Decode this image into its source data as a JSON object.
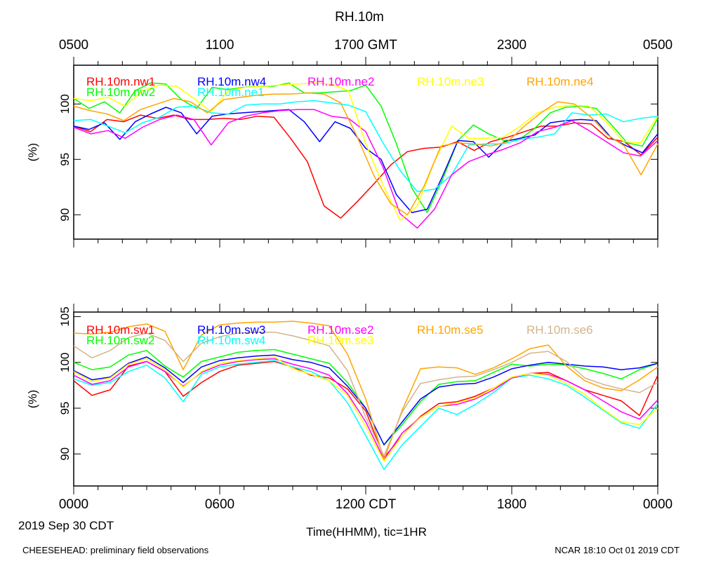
{
  "figure": {
    "title": "RH.10m",
    "top_axis_unit": "GMT",
    "x_axis_label": "Time(HHMM), tic=1HR",
    "date_label": "2019 Sep 30 CDT",
    "footer_left": "CHEESEHEAD: preliminary field observations",
    "footer_right": "NCAR 18:10 Oct 01 2019 CDT"
  },
  "chart_data": [
    {
      "type": "line",
      "title": "RH.10m",
      "ylabel": "(%)",
      "xlabel": "",
      "x_unit": "hour CDT",
      "xlim": [
        0,
        24
      ],
      "ylim": [
        87.8,
        103.5
      ],
      "yticks": [
        90,
        95,
        100
      ],
      "top_ticks": [
        {
          "x": 0,
          "label": "0500"
        },
        {
          "x": 6,
          "label": "1100"
        },
        {
          "x": 12,
          "label": "1700 GMT"
        },
        {
          "x": 18,
          "label": "2300"
        },
        {
          "x": 24,
          "label": "0500"
        }
      ],
      "grid": false,
      "series": [
        {
          "name": "RH.10m.nw1",
          "color": "#ff0000",
          "y": [
            98.0,
            97.5,
            98.6,
            98.4,
            99.0,
            98.7,
            99.0,
            98.6,
            98.6,
            98.7,
            98.6,
            98.9,
            98.8,
            96.9,
            94.8,
            90.8,
            89.7,
            91.2,
            92.8,
            94.5,
            95.7,
            96.0,
            96.1,
            96.6,
            95.8,
            96.6,
            97.0,
            97.5,
            98.0,
            98.0,
            98.3,
            98.2,
            96.9,
            96.6,
            95.4,
            97.0
          ]
        },
        {
          "name": "RH.10m.nw2",
          "color": "#00ff00",
          "y": [
            100.5,
            99.6,
            100.2,
            99.2,
            101.2,
            101.9,
            101.8,
            100.4,
            99.6,
            101.5,
            101.3,
            101.5,
            101.6,
            101.6,
            101.9,
            101.0,
            101.0,
            101.1,
            101.2,
            101.7,
            99.8,
            96.4,
            92.4,
            90.2,
            93.2,
            96.7,
            98.1,
            97.3,
            96.7,
            96.8,
            97.8,
            99.2,
            99.7,
            99.8,
            99.6,
            98.1,
            96.5,
            96.2,
            98.7
          ]
        },
        {
          "name": "RH.10m.nw4",
          "color": "#0000ff",
          "y": [
            98.0,
            97.7,
            98.3,
            96.8,
            98.4,
            99.1,
            99.7,
            99.2,
            97.3,
            98.9,
            99.1,
            99.2,
            99.3,
            99.4,
            99.5,
            98.4,
            96.6,
            98.4,
            97.8,
            96.0,
            95.0,
            91.8,
            90.2,
            90.5,
            93.5,
            96.7,
            96.6,
            95.2,
            96.6,
            96.9,
            97.2,
            98.3,
            98.5,
            98.6,
            98.5,
            96.9,
            96.2,
            95.6,
            97.3
          ]
        },
        {
          "name": "RH.10m.ne1",
          "color": "#00ffff",
          "y": [
            98.5,
            98.6,
            98.0,
            97.4,
            98.3,
            98.8,
            99.7,
            99.8,
            99.2,
            99.1,
            99.9,
            100.0,
            100.0,
            100.2,
            100.3,
            100.1,
            99.9,
            99.3,
            96.5,
            94.0,
            92.1,
            92.3,
            93.6,
            96.3,
            96.4,
            96.4,
            96.8,
            97.0,
            97.3,
            99.2,
            99.0,
            99.1,
            98.4,
            98.7,
            98.9
          ]
        },
        {
          "name": "RH.10m.ne2",
          "color": "#ff00ff",
          "y": [
            97.9,
            97.3,
            97.6,
            96.9,
            97.9,
            98.6,
            99.0,
            98.6,
            96.3,
            98.3,
            98.9,
            99.2,
            99.4,
            99.5,
            99.5,
            98.9,
            98.7,
            97.5,
            94.3,
            90.1,
            88.8,
            90.5,
            93.6,
            94.8,
            95.4,
            95.9,
            96.5,
            97.5,
            97.9,
            98.5,
            97.6,
            96.6,
            95.6,
            95.3,
            96.7
          ]
        },
        {
          "name": "RH.10m.ne3",
          "color": "#ffff00",
          "y": [
            100.5,
            100.3,
            100.6,
            99.8,
            101.2,
            101.7,
            101.6,
            100.5,
            99.3,
            101.2,
            101.5,
            101.6,
            101.7,
            101.8,
            101.9,
            101.8,
            101.2,
            96.4,
            92.7,
            89.5,
            90.8,
            94.8,
            98.0,
            96.9,
            96.9,
            97.0,
            98.0,
            99.2,
            99.7,
            99.9,
            99.8,
            98.4,
            96.6,
            96.5,
            98.9
          ]
        },
        {
          "name": "RH.10m.ne4",
          "color": "#ffa500",
          "y": [
            99.8,
            99.4,
            99.1,
            98.5,
            99.5,
            100.0,
            100.5,
            100.2,
            99.2,
            100.4,
            100.6,
            100.8,
            100.9,
            100.9,
            101.0,
            100.9,
            100.1,
            97.0,
            93.5,
            91.0,
            90.0,
            92.6,
            96.2,
            96.5,
            96.4,
            96.2,
            96.6,
            98.0,
            99.2,
            100.2,
            100.0,
            98.8,
            97.2,
            96.2,
            93.6,
            96.4
          ]
        }
      ]
    },
    {
      "type": "line",
      "title": "",
      "ylabel": "(%)",
      "xlabel": "Time(HHMM), tic=1HR",
      "x_unit": "hour CDT",
      "xlim": [
        0,
        24
      ],
      "ylim": [
        86.5,
        105.5
      ],
      "yticks": [
        90,
        95,
        100,
        105
      ],
      "bottom_ticks": [
        {
          "x": 0,
          "label": "0000"
        },
        {
          "x": 6,
          "label": "0600"
        },
        {
          "x": 12,
          "label": "1200 CDT"
        },
        {
          "x": 18,
          "label": "1800"
        },
        {
          "x": 24,
          "label": "0000"
        }
      ],
      "grid": false,
      "series": [
        {
          "name": "RH.10m.sw1",
          "color": "#ff0000",
          "y": [
            98.0,
            96.4,
            97.0,
            99.6,
            100.1,
            99.0,
            96.3,
            97.8,
            99.0,
            99.7,
            99.9,
            100.1,
            99.5,
            98.6,
            98.3,
            97.1,
            94.7,
            89.6,
            92.0,
            94.1,
            95.5,
            95.7,
            96.3,
            97.2,
            98.3,
            98.8,
            98.9,
            98.0,
            97.0,
            96.4,
            95.8,
            94.2,
            98.6
          ]
        },
        {
          "name": "RH.10m.sw2",
          "color": "#00ff00",
          "y": [
            100.0,
            99.2,
            99.5,
            100.8,
            101.3,
            99.6,
            98.4,
            100.1,
            100.6,
            101.1,
            101.3,
            101.4,
            100.9,
            100.4,
            99.9,
            97.8,
            95.0,
            91.0,
            93.2,
            95.7,
            97.6,
            97.9,
            98.0,
            98.9,
            99.8,
            99.6,
            99.8,
            99.7,
            99.3,
            98.8,
            98.2,
            99.2,
            99.9
          ]
        },
        {
          "name": "RH.10m.sw3",
          "color": "#0000ff",
          "y": [
            99.1,
            98.1,
            98.4,
            99.9,
            100.6,
            99.4,
            97.8,
            99.5,
            100.2,
            100.5,
            100.7,
            100.8,
            100.3,
            100.0,
            99.4,
            97.4,
            95.0,
            91.0,
            93.5,
            96.0,
            97.3,
            97.6,
            97.7,
            98.4,
            99.3,
            99.7,
            100.0,
            99.8,
            99.6,
            99.5,
            99.2,
            99.4,
            99.9
          ]
        },
        {
          "name": "RH.10m.sw4",
          "color": "#00ffff",
          "y": [
            98.2,
            97.5,
            97.8,
            99.0,
            99.7,
            98.3,
            95.7,
            98.7,
            99.5,
            99.8,
            100.0,
            100.2,
            99.5,
            99.0,
            98.0,
            95.6,
            92.0,
            88.3,
            91.0,
            93.0,
            95.0,
            94.3,
            95.4,
            96.7,
            98.3,
            98.6,
            98.2,
            97.5,
            96.2,
            94.8,
            93.4,
            92.8,
            95.5
          ]
        },
        {
          "name": "RH.10m.se2",
          "color": "#ff00ff",
          "y": [
            98.6,
            97.6,
            98.0,
            99.5,
            100.1,
            99.0,
            97.4,
            98.9,
            99.7,
            100.1,
            100.3,
            100.4,
            99.8,
            99.3,
            98.6,
            96.6,
            93.5,
            89.4,
            92.3,
            94.0,
            95.2,
            95.4,
            96.0,
            97.0,
            98.3,
            98.8,
            98.7,
            98.0,
            97.0,
            95.8,
            94.6,
            93.8,
            95.9
          ]
        },
        {
          "name": "RH.10m.se3",
          "color": "#ffff00",
          "y": [
            99.0,
            97.9,
            98.3,
            99.8,
            100.4,
            99.2,
            97.3,
            99.0,
            99.9,
            100.2,
            100.4,
            100.6,
            99.3,
            98.7,
            98.0,
            96.4,
            93.0,
            89.2,
            92.0,
            94.0,
            95.2,
            95.6,
            96.1,
            97.2,
            98.4,
            98.8,
            98.6,
            97.7,
            96.5,
            94.9,
            93.5,
            93.2,
            95.0
          ]
        },
        {
          "name": "RH.10m.se5",
          "color": "#ffa500",
          "y": [
            103.2,
            103.1,
            103.3,
            103.9,
            104.2,
            103.4,
            99.2,
            103.0,
            104.1,
            104.3,
            104.4,
            104.4,
            104.5,
            104.3,
            104.0,
            100.9,
            96.0,
            89.4,
            94.8,
            99.3,
            99.5,
            99.4,
            98.7,
            99.4,
            100.4,
            101.5,
            101.9,
            99.6,
            98.0,
            97.2,
            96.9,
            98.1,
            99.5
          ]
        },
        {
          "name": "RH.10m.se6",
          "color": "#d2b48c",
          "y": [
            101.8,
            100.5,
            101.3,
            102.7,
            103.2,
            102.4,
            100.1,
            102.1,
            102.8,
            103.2,
            103.3,
            103.3,
            102.9,
            102.4,
            101.8,
            99.1,
            94.0,
            89.8,
            94.6,
            97.7,
            98.1,
            98.4,
            98.5,
            99.2,
            100.0,
            101.0,
            101.2,
            100.1,
            98.3,
            97.6,
            97.1,
            96.7,
            97.8
          ]
        }
      ]
    }
  ]
}
